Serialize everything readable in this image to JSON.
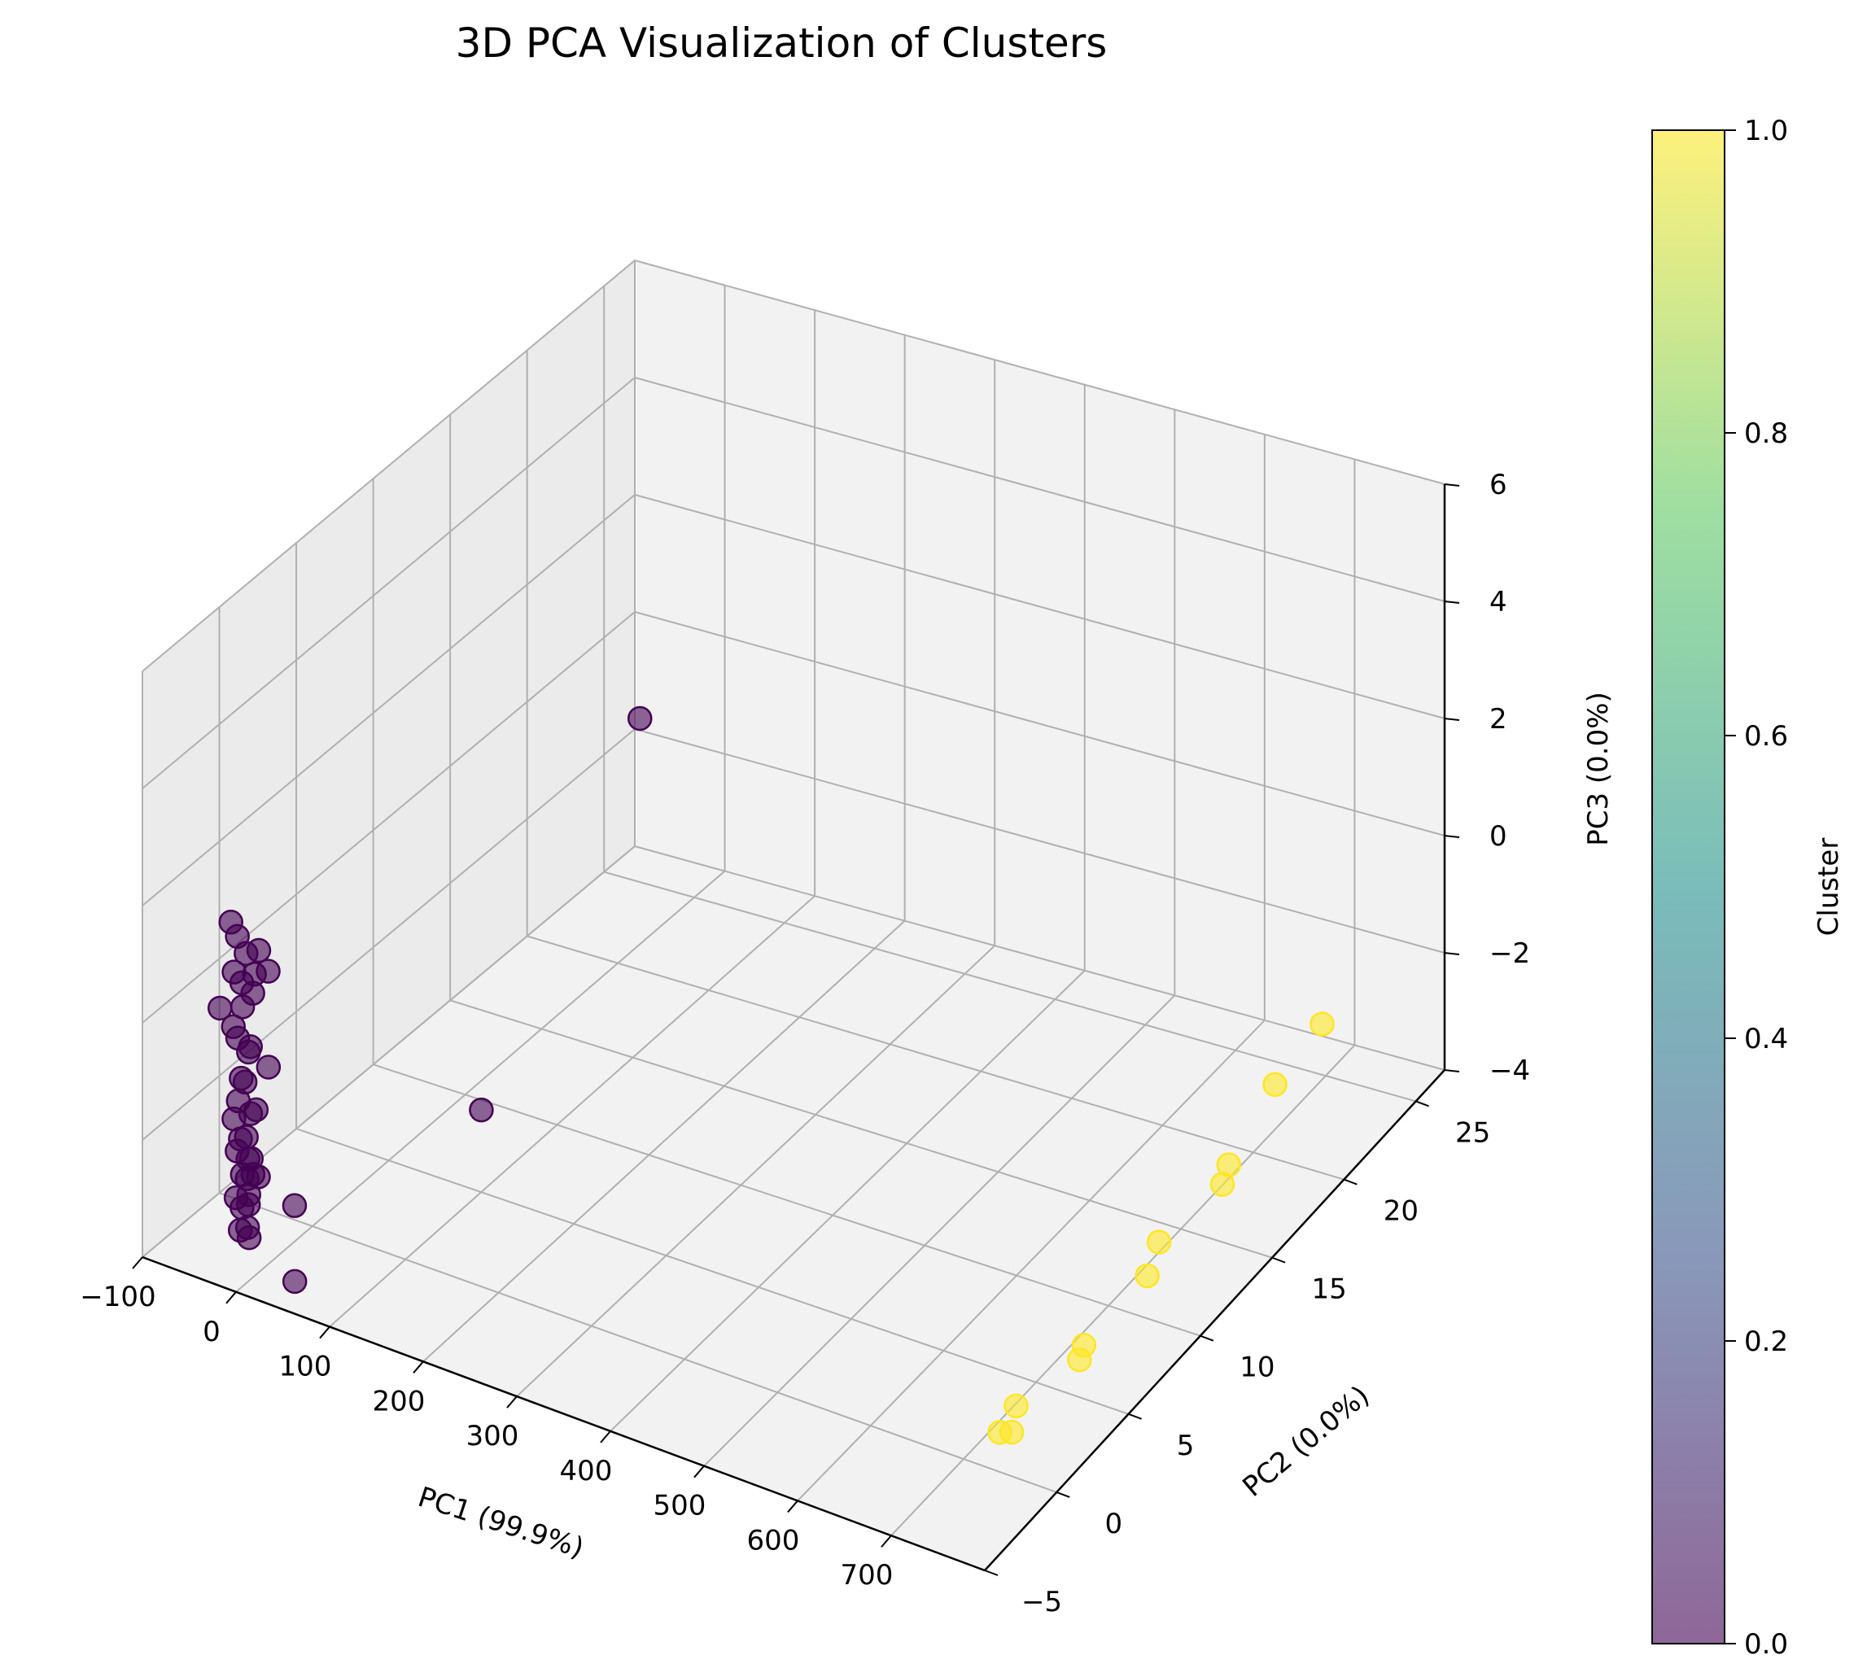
{
  "chart_data": {
    "type": "scatter",
    "projection": "3d",
    "title": "3D PCA Visualization of Clusters",
    "xlabel": "PC1 (99.9%)",
    "ylabel": "PC2 (0.0%)",
    "zlabel": "PC3 (0.0%)",
    "xlim": [
      -100,
      800
    ],
    "ylim": [
      -5,
      27
    ],
    "zlim": [
      -4,
      6
    ],
    "xticks": [
      "−100",
      "0",
      "100",
      "200",
      "300",
      "400",
      "500",
      "600",
      "700"
    ],
    "yticks": [
      "−5",
      "0",
      "5",
      "10",
      "15",
      "20",
      "25"
    ],
    "zticks": [
      "−4",
      "−2",
      "0",
      "2",
      "4",
      "6"
    ],
    "grid": true,
    "colorbar": {
      "label": "Cluster",
      "range": [
        0,
        1
      ],
      "ticks": [
        "0.0",
        "0.2",
        "0.4",
        "0.6",
        "0.8",
        "1.0"
      ],
      "colormap": "viridis",
      "colors": [
        "#440154",
        "#3b528b",
        "#21918c",
        "#5ec962",
        "#fde725"
      ]
    },
    "series": [
      {
        "cluster": 0,
        "color": "#440154",
        "points": [
          [
            -30,
            -3.5,
            1.8
          ],
          [
            -28,
            -3.2,
            1.5
          ],
          [
            -25,
            -3.6,
            1.0
          ],
          [
            -22,
            -3.0,
            1.2
          ],
          [
            -20,
            -3.4,
            0.8
          ],
          [
            -18,
            -2.8,
            0.5
          ],
          [
            -24,
            -3.1,
            0.3
          ],
          [
            -26,
            -3.3,
            -0.2
          ],
          [
            -21,
            -2.9,
            -0.5
          ],
          [
            -19,
            -3.5,
            -0.8
          ],
          [
            -23,
            -3.0,
            -1.0
          ],
          [
            -27,
            -3.2,
            -1.3
          ],
          [
            -22,
            -2.7,
            -1.6
          ],
          [
            -20,
            -3.1,
            -1.9
          ],
          [
            -25,
            -3.4,
            -2.1
          ],
          [
            -18,
            -2.9,
            -2.3
          ],
          [
            -21,
            -3.3,
            -2.5
          ],
          [
            -24,
            -2.8,
            -2.7
          ],
          [
            -19,
            -3.0,
            -2.9
          ],
          [
            -23,
            -3.2,
            -3.1
          ],
          [
            -26,
            -2.6,
            -3.2
          ],
          [
            -20,
            -3.5,
            -3.4
          ],
          [
            -22,
            -2.9,
            -3.5
          ],
          [
            -17,
            -3.1,
            -3.6
          ],
          [
            -28,
            -3.0,
            -2.0
          ],
          [
            -15,
            -3.3,
            -2.2
          ],
          [
            -16,
            -2.7,
            -1.5
          ],
          [
            -14,
            -3.2,
            -0.3
          ],
          [
            -13,
            -3.0,
            0.9
          ],
          [
            -29,
            -3.4,
            0.0
          ],
          [
            -12,
            -2.8,
            -2.6
          ],
          [
            -31,
            -3.1,
            -3.0
          ],
          [
            30,
            -3.0,
            -2.8
          ],
          [
            40,
            -3.6,
            -3.9
          ],
          [
            -45,
            -3.3,
            0.2
          ],
          [
            -10,
            -2.9,
            1.3
          ],
          [
            5,
            -3.2,
            1.1
          ],
          [
            2,
            -3.0,
            -0.6
          ],
          [
            -8,
            -3.4,
            -2.4
          ],
          [
            -35,
            -3.0,
            -1.7
          ],
          [
            230,
            -3.0,
            0.0
          ],
          [
            320,
            2.0,
            6.0
          ]
        ]
      },
      {
        "cluster": 1,
        "color": "#fde725",
        "points": [
          [
            705,
            3.0,
            -4.3
          ],
          [
            700,
            2.5,
            -4.2
          ],
          [
            702,
            3.5,
            -4.0
          ],
          [
            700,
            8.0,
            -4.4
          ],
          [
            697,
            8.5,
            -4.3
          ],
          [
            695,
            13.0,
            -4.3
          ],
          [
            692,
            14.0,
            -4.0
          ],
          [
            690,
            18.5,
            -4.2
          ],
          [
            689,
            19.0,
            -4.0
          ],
          [
            692,
            22.0,
            -3.4
          ],
          [
            688,
            25.5,
            -3.3
          ]
        ]
      }
    ]
  }
}
